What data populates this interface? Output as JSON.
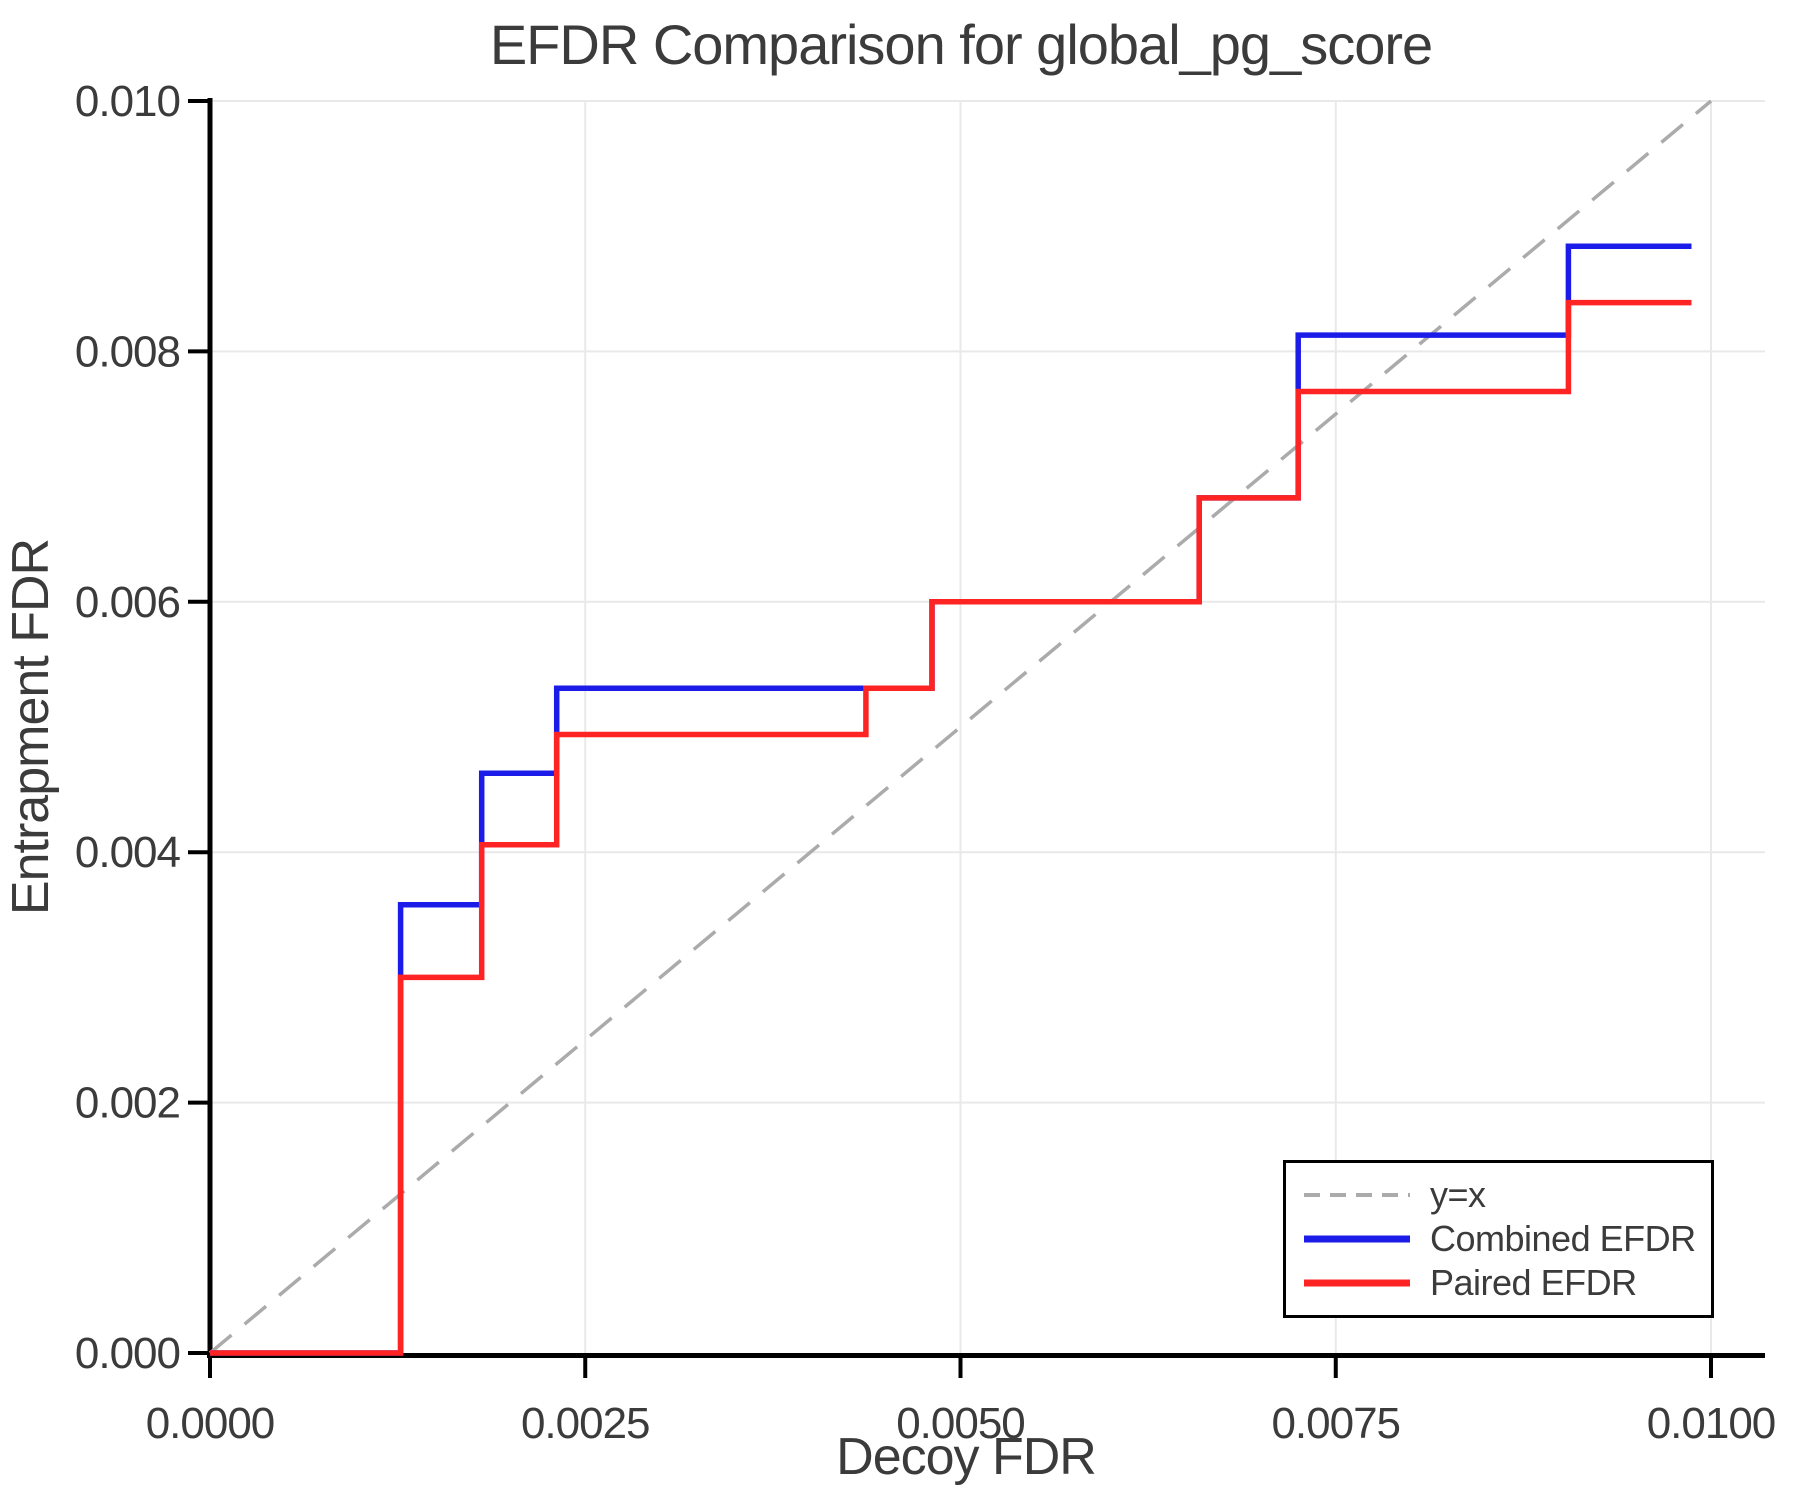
{
  "chart_data": {
    "type": "line",
    "subtype": "step",
    "title": "EFDR Comparison for global_pg_score",
    "xlabel": "Decoy FDR",
    "ylabel": "Entrapment FDR",
    "xlim": [
      0,
      0.0104
    ],
    "ylim": [
      0,
      0.01
    ],
    "grid": true,
    "legend_position": "lower right",
    "x_tick_values": [
      0,
      0.0025,
      0.005,
      0.0075,
      0.01
    ],
    "x_tick_labels": [
      "0.0000",
      "0.0025",
      "0.0050",
      "0.0075",
      "0.0100"
    ],
    "y_tick_values": [
      0,
      0.002,
      0.004,
      0.006,
      0.008,
      0.01
    ],
    "y_tick_labels": [
      "0.000",
      "0.002",
      "0.004",
      "0.006",
      "0.008",
      "0.010"
    ],
    "series": [
      {
        "name": "y=x",
        "type": "line",
        "style": "dashed",
        "color": "#ababab",
        "points": [
          [
            0,
            0
          ],
          [
            0.01,
            0.01
          ]
        ]
      },
      {
        "name": "Combined EFDR",
        "type": "step",
        "style": "solid",
        "color": "#1c1ce8",
        "x_end": 0.00987,
        "steps": [
          [
            0,
            0
          ],
          [
            0.00127,
            0.00358
          ],
          [
            0.00181,
            0.00463
          ],
          [
            0.00231,
            0.00531
          ],
          [
            0.00481,
            0.006
          ],
          [
            0.00659,
            0.00683
          ],
          [
            0.00725,
            0.00813
          ],
          [
            0.00905,
            0.00884
          ]
        ]
      },
      {
        "name": "Paired EFDR",
        "type": "step",
        "style": "solid",
        "color": "#ff2424",
        "x_end": 0.00987,
        "steps": [
          [
            0,
            0
          ],
          [
            0.00127,
            0.003
          ],
          [
            0.00181,
            0.00406
          ],
          [
            0.00231,
            0.00494
          ],
          [
            0.00437,
            0.00531
          ],
          [
            0.00481,
            0.006
          ],
          [
            0.00659,
            0.00683
          ],
          [
            0.00725,
            0.00768
          ],
          [
            0.00905,
            0.00839
          ]
        ]
      }
    ],
    "colors": {
      "background": "#ffffff",
      "grid": "#e9e9e9",
      "axis": "#000000",
      "text": "#3b3b3b"
    }
  }
}
